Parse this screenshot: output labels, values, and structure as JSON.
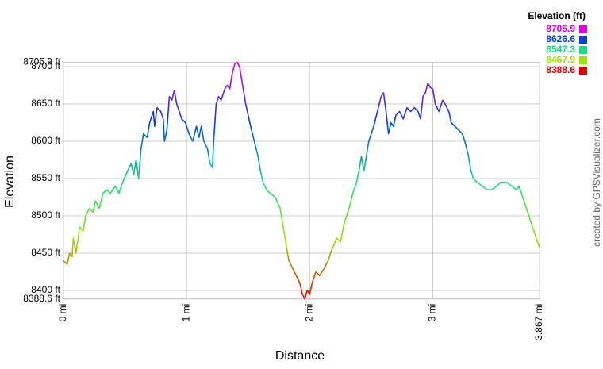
{
  "chart_data": {
    "type": "line",
    "xlabel": "Distance",
    "ylabel": "Elevation",
    "credit": "created by GPSVisualizer.com",
    "xlim": [
      0,
      3.867
    ],
    "xticks": [
      {
        "value": 0,
        "label": "0 mi"
      },
      {
        "value": 1,
        "label": "1 mi"
      },
      {
        "value": 2,
        "label": "2 mi"
      },
      {
        "value": 3,
        "label": "3 mi"
      },
      {
        "value": 3.867,
        "label": "3.867 mi"
      }
    ],
    "ylim": [
      8388.6,
      8705.9
    ],
    "yticks": [
      {
        "value": 8388.6,
        "label": "8388.6 ft"
      },
      {
        "value": 8400,
        "label": "8400 ft"
      },
      {
        "value": 8450,
        "label": "8450 ft"
      },
      {
        "value": 8500,
        "label": "8500 ft"
      },
      {
        "value": 8550,
        "label": "8550 ft"
      },
      {
        "value": 8600,
        "label": "8600 ft"
      },
      {
        "value": 8650,
        "label": "8650 ft"
      },
      {
        "value": 8700,
        "label": "8700 ft"
      },
      {
        "value": 8705.9,
        "label": "8705.9 ft"
      }
    ],
    "grid": true,
    "legend": {
      "title": "Elevation (ft)",
      "values": [
        8705.9,
        8626.6,
        8547.3,
        8467.9,
        8388.6
      ],
      "colors": [
        "#e000e0",
        "#0040e0",
        "#10e080",
        "#a0e000",
        "#e00000"
      ]
    },
    "x": [
      0,
      0.03,
      0.05,
      0.07,
      0.08,
      0.1,
      0.12,
      0.13,
      0.16,
      0.18,
      0.21,
      0.24,
      0.26,
      0.29,
      0.32,
      0.35,
      0.38,
      0.42,
      0.45,
      0.48,
      0.52,
      0.55,
      0.57,
      0.59,
      0.61,
      0.63,
      0.65,
      0.68,
      0.7,
      0.73,
      0.74,
      0.76,
      0.79,
      0.81,
      0.82,
      0.84,
      0.86,
      0.88,
      0.9,
      0.92,
      0.94,
      0.96,
      0.99,
      1.02,
      1.05,
      1.08,
      1.1,
      1.12,
      1.14,
      1.17,
      1.19,
      1.21,
      1.22,
      1.24,
      1.26,
      1.28,
      1.31,
      1.33,
      1.35,
      1.37,
      1.39,
      1.41,
      1.43,
      1.45,
      1.48,
      1.52,
      1.55,
      1.58,
      1.6,
      1.62,
      1.65,
      1.68,
      1.72,
      1.76,
      1.78,
      1.8,
      1.83,
      1.86,
      1.89,
      1.92,
      1.94,
      1.96,
      1.98,
      2.0,
      2.02,
      2.05,
      2.08,
      2.12,
      2.15,
      2.18,
      2.22,
      2.25,
      2.28,
      2.32,
      2.35,
      2.38,
      2.4,
      2.42,
      2.44,
      2.46,
      2.48,
      2.52,
      2.55,
      2.58,
      2.6,
      2.62,
      2.64,
      2.66,
      2.68,
      2.7,
      2.73,
      2.76,
      2.79,
      2.82,
      2.85,
      2.88,
      2.9,
      2.92,
      2.94,
      2.96,
      2.98,
      3.0,
      3.02,
      3.05,
      3.08,
      3.1,
      3.13,
      3.15,
      3.18,
      3.21,
      3.24,
      3.26,
      3.29,
      3.31,
      3.33,
      3.36,
      3.4,
      3.44,
      3.48,
      3.52,
      3.55,
      3.6,
      3.64,
      3.68,
      3.7,
      3.72,
      3.75,
      3.78,
      3.82,
      3.85,
      3.867
    ],
    "values": [
      8440,
      8435,
      8450,
      8445,
      8470,
      8450,
      8470,
      8485,
      8480,
      8500,
      8510,
      8505,
      8520,
      8510,
      8530,
      8535,
      8530,
      8540,
      8530,
      8545,
      8560,
      8570,
      8555,
      8575,
      8550,
      8590,
      8610,
      8605,
      8625,
      8640,
      8620,
      8645,
      8640,
      8630,
      8600,
      8615,
      8660,
      8655,
      8668,
      8650,
      8640,
      8630,
      8625,
      8610,
      8600,
      8620,
      8605,
      8620,
      8600,
      8590,
      8570,
      8565,
      8600,
      8650,
      8660,
      8655,
      8670,
      8675,
      8670,
      8690,
      8703,
      8705.9,
      8700,
      8680,
      8650,
      8620,
      8600,
      8580,
      8560,
      8545,
      8535,
      8530,
      8525,
      8510,
      8490,
      8470,
      8440,
      8430,
      8420,
      8410,
      8395,
      8388.6,
      8400,
      8395,
      8410,
      8425,
      8420,
      8430,
      8440,
      8455,
      8470,
      8465,
      8490,
      8510,
      8530,
      8545,
      8560,
      8580,
      8560,
      8580,
      8600,
      8620,
      8640,
      8660,
      8665,
      8640,
      8610,
      8625,
      8620,
      8635,
      8640,
      8630,
      8645,
      8640,
      8645,
      8640,
      8630,
      8660,
      8665,
      8678,
      8672,
      8670,
      8650,
      8640,
      8655,
      8650,
      8640,
      8625,
      8620,
      8615,
      8610,
      8600,
      8580,
      8560,
      8550,
      8545,
      8540,
      8535,
      8535,
      8540,
      8545,
      8545,
      8540,
      8535,
      8540,
      8530,
      8515,
      8500,
      8480,
      8465,
      8458
    ]
  }
}
